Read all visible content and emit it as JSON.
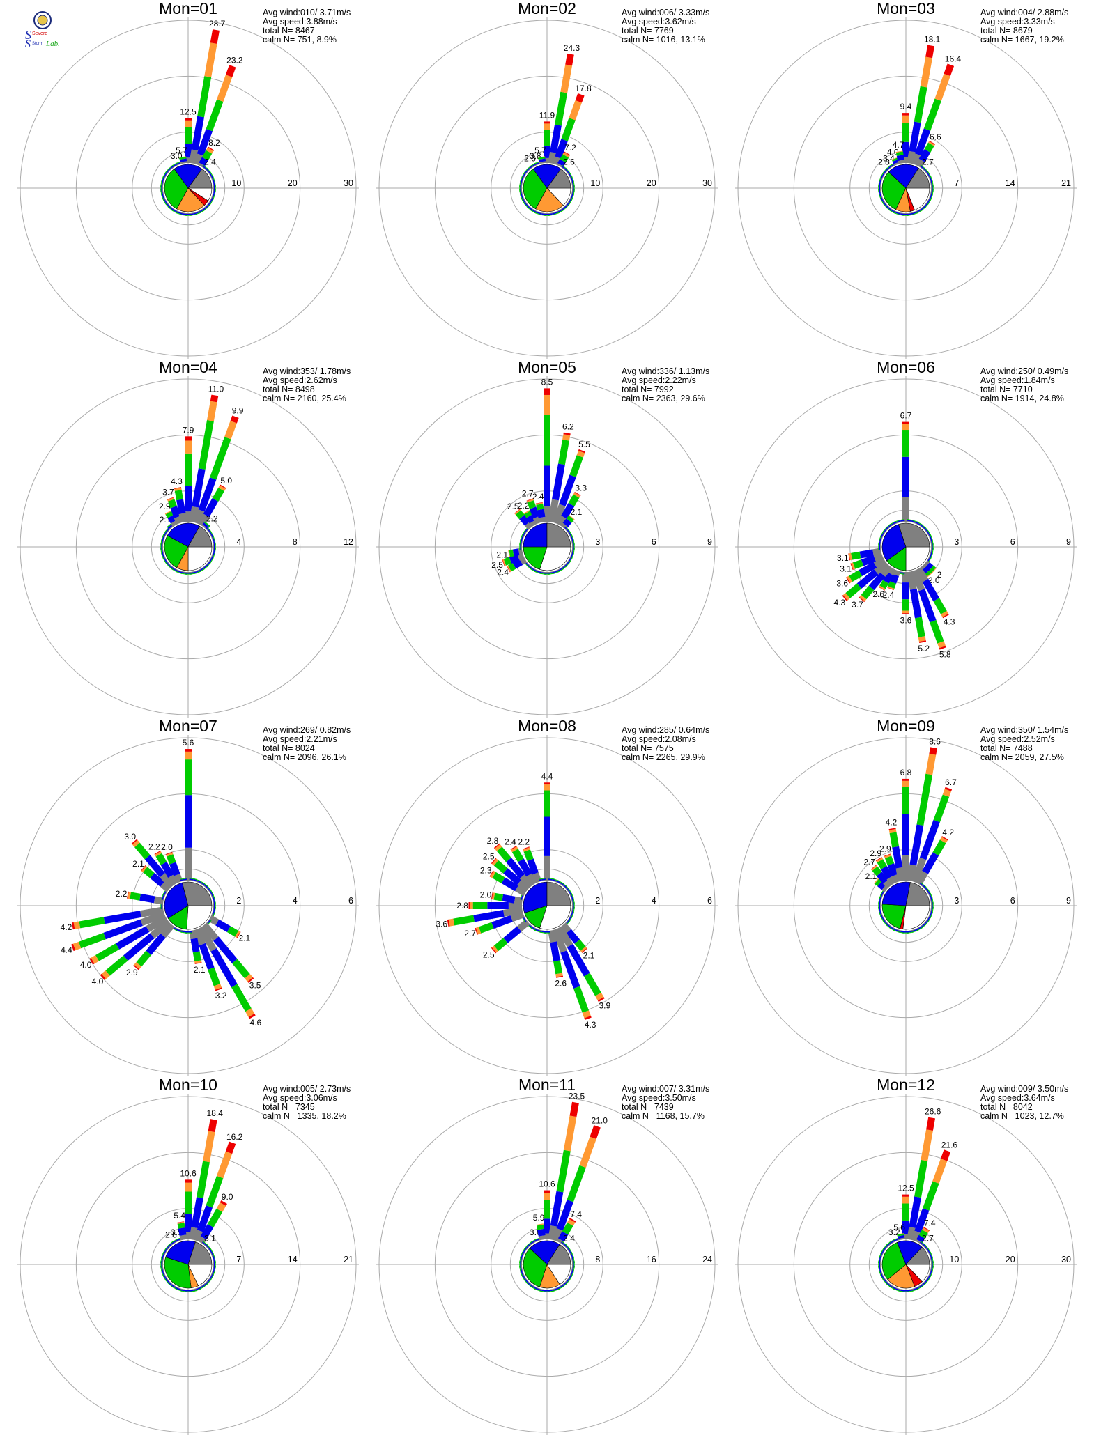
{
  "logo": {
    "letters_top": "Severe",
    "letters_mid": "Storm",
    "letters_right": "Lab."
  },
  "colors": {
    "calm": "#ffffff",
    "grey": "#808080",
    "blue": "#0000ee",
    "green": "#00cc00",
    "orange": "#ff9933",
    "red": "#ee0000",
    "grid": "#aaaaaa"
  },
  "stat_labels": [
    "Avg wind:",
    "Avg speed:",
    "total N=",
    "calm N="
  ],
  "chart_data": [
    {
      "type": "windrose",
      "title": "Mon=01",
      "rings": [
        10,
        20,
        30
      ],
      "rmax": 30,
      "avg_wind": "010/ 3.71m/s",
      "avg_speed": "3.88m/s",
      "total_n": "8467",
      "calm_n": "751,   8.9%",
      "labeled_bars": [
        {
          "dir": 0,
          "v": 12.5,
          "label": "12.5"
        },
        {
          "dir": 10,
          "v": 28.7,
          "label": "28.7"
        },
        {
          "dir": 20,
          "v": 23.2,
          "label": "23.2"
        },
        {
          "dir": 30,
          "v": 8.2,
          "label": "8.2"
        },
        {
          "dir": -10,
          "v": 5.7,
          "label": "5.7"
        },
        {
          "dir": -20,
          "v": 3.0,
          "label": "3.0"
        },
        {
          "dir": 40,
          "v": 2.4,
          "label": "2.4"
        }
      ],
      "pie": [
        {
          "c": "calm",
          "f": 0.09
        },
        {
          "c": "red",
          "f": 0.04
        },
        {
          "c": "orange",
          "f": 0.2
        },
        {
          "c": "green",
          "f": 0.32
        },
        {
          "c": "blue",
          "f": 0.2
        },
        {
          "c": "grey",
          "f": 0.15
        }
      ]
    },
    {
      "type": "windrose",
      "title": "Mon=02",
      "rings": [
        10,
        20,
        30
      ],
      "rmax": 30,
      "avg_wind": "006/ 3.33m/s",
      "avg_speed": "3.62m/s",
      "total_n": "7769",
      "calm_n": "1016,  13.1%",
      "labeled_bars": [
        {
          "dir": 0,
          "v": 11.9,
          "label": "11.9"
        },
        {
          "dir": 10,
          "v": 24.3,
          "label": "24.3"
        },
        {
          "dir": 20,
          "v": 17.8,
          "label": "17.8"
        },
        {
          "dir": 30,
          "v": 7.2,
          "label": "7.2"
        },
        {
          "dir": -10,
          "v": 5.7,
          "label": "5.7"
        },
        {
          "dir": -20,
          "v": 3.8,
          "label": "3.8"
        },
        {
          "dir": -30,
          "v": 2.6,
          "label": "2.6"
        },
        {
          "dir": 40,
          "v": 2.6,
          "label": "2.6"
        }
      ],
      "pie": [
        {
          "c": "calm",
          "f": 0.13
        },
        {
          "c": "orange",
          "f": 0.2
        },
        {
          "c": "green",
          "f": 0.32
        },
        {
          "c": "blue",
          "f": 0.2
        },
        {
          "c": "grey",
          "f": 0.15
        }
      ]
    },
    {
      "type": "windrose",
      "title": "Mon=03",
      "rings": [
        7,
        14,
        21
      ],
      "rmax": 21,
      "avg_wind": "004/ 2.88m/s",
      "avg_speed": "3.33m/s",
      "total_n": "8679",
      "calm_n": "1667,  19.2%",
      "labeled_bars": [
        {
          "dir": 0,
          "v": 9.4,
          "label": "9.4"
        },
        {
          "dir": 10,
          "v": 18.1,
          "label": "18.1"
        },
        {
          "dir": 20,
          "v": 16.4,
          "label": "16.4"
        },
        {
          "dir": 30,
          "v": 6.6,
          "label": "6.6"
        },
        {
          "dir": 40,
          "v": 2.7,
          "label": "2.7"
        },
        {
          "dir": -10,
          "v": 4.7,
          "label": "4.7"
        },
        {
          "dir": -20,
          "v": 4.0,
          "label": "4.0"
        },
        {
          "dir": -30,
          "v": 3.4,
          "label": "3.4"
        },
        {
          "dir": -40,
          "v": 2.8,
          "label": "2.8"
        }
      ],
      "pie": [
        {
          "c": "calm",
          "f": 0.19
        },
        {
          "c": "red",
          "f": 0.03
        },
        {
          "c": "orange",
          "f": 0.1
        },
        {
          "c": "green",
          "f": 0.3
        },
        {
          "c": "blue",
          "f": 0.22
        },
        {
          "c": "grey",
          "f": 0.16
        }
      ]
    },
    {
      "type": "windrose",
      "title": "Mon=04",
      "rings": [
        4,
        8,
        12
      ],
      "rmax": 12,
      "avg_wind": "353/ 1.78m/s",
      "avg_speed": "2.62m/s",
      "total_n": "8498",
      "calm_n": "2160,  25.4%",
      "labeled_bars": [
        {
          "dir": 0,
          "v": 7.9,
          "label": "7.9"
        },
        {
          "dir": 10,
          "v": 11.0,
          "label": "11.0"
        },
        {
          "dir": 20,
          "v": 9.9,
          "label": "9.9"
        },
        {
          "dir": 30,
          "v": 5.0,
          "label": "5.0"
        },
        {
          "dir": 40,
          "v": 2.2,
          "label": "2.2"
        },
        {
          "dir": -10,
          "v": 4.3,
          "label": "4.3"
        },
        {
          "dir": -20,
          "v": 3.7,
          "label": "3.7"
        },
        {
          "dir": -30,
          "v": 2.9,
          "label": "2.9"
        },
        {
          "dir": -40,
          "v": 2.1,
          "label": "2.1"
        }
      ],
      "pie": [
        {
          "c": "calm",
          "f": 0.25
        },
        {
          "c": "orange",
          "f": 0.08
        },
        {
          "c": "green",
          "f": 0.25
        },
        {
          "c": "blue",
          "f": 0.25
        },
        {
          "c": "grey",
          "f": 0.17
        }
      ]
    },
    {
      "type": "windrose",
      "title": "Mon=05",
      "rings": [
        3,
        6,
        9
      ],
      "rmax": 9,
      "avg_wind": "336/ 1.13m/s",
      "avg_speed": "2.22m/s",
      "total_n": "7992",
      "calm_n": "2363,  29.6%",
      "labeled_bars": [
        {
          "dir": 0,
          "v": 8.5,
          "label": "8.5"
        },
        {
          "dir": 10,
          "v": 6.2,
          "label": "6.2"
        },
        {
          "dir": 20,
          "v": 5.5,
          "label": "5.5"
        },
        {
          "dir": 30,
          "v": 3.3,
          "label": "3.3"
        },
        {
          "dir": 40,
          "v": 2.1,
          "label": "2.1"
        },
        {
          "dir": -10,
          "v": 2.4,
          "label": "2.4"
        },
        {
          "dir": -20,
          "v": 2.7,
          "label": "2.7"
        },
        {
          "dir": -30,
          "v": 2.2,
          "label": "2.2"
        },
        {
          "dir": -40,
          "v": 2.5,
          "label": "2.5"
        },
        {
          "dir": -100,
          "v": 2.1,
          "label": "2.1"
        },
        {
          "dir": -110,
          "v": 2.5,
          "label": "2.5"
        },
        {
          "dir": -120,
          "v": 2.4,
          "label": "2.4"
        }
      ],
      "pie": [
        {
          "c": "calm",
          "f": 0.3
        },
        {
          "c": "green",
          "f": 0.2
        },
        {
          "c": "blue",
          "f": 0.25
        },
        {
          "c": "grey",
          "f": 0.25
        }
      ]
    },
    {
      "type": "windrose",
      "title": "Mon=06",
      "rings": [
        3,
        6,
        9
      ],
      "rmax": 9,
      "avg_wind": "250/ 0.49m/s",
      "avg_speed": "1.84m/s",
      "total_n": "7710",
      "calm_n": "1914,  24.8%",
      "labeled_bars": [
        {
          "dir": 0,
          "v": 6.7,
          "label": "6.7"
        },
        {
          "dir": -100,
          "v": 3.1,
          "label": "3.1"
        },
        {
          "dir": -110,
          "v": 3.1,
          "label": "3.1"
        },
        {
          "dir": -120,
          "v": 3.6,
          "label": "3.6"
        },
        {
          "dir": -130,
          "v": 4.3,
          "label": "4.3"
        },
        {
          "dir": -140,
          "v": 3.7,
          "label": "3.7"
        },
        {
          "dir": -150,
          "v": 2.6,
          "label": "2.6"
        },
        {
          "dir": -160,
          "v": 2.4,
          "label": "2.4"
        },
        {
          "dir": 180,
          "v": 3.6,
          "label": "3.6"
        },
        {
          "dir": 170,
          "v": 5.2,
          "label": "5.2"
        },
        {
          "dir": 160,
          "v": 5.8,
          "label": "5.8"
        },
        {
          "dir": 150,
          "v": 4.3,
          "label": "4.3"
        },
        {
          "dir": 140,
          "v": 2.0,
          "label": "2.0"
        },
        {
          "dir": 130,
          "v": 2.0,
          "label": "2"
        }
      ],
      "pie": [
        {
          "c": "calm",
          "f": 0.25
        },
        {
          "c": "green",
          "f": 0.15
        },
        {
          "c": "blue",
          "f": 0.3
        },
        {
          "c": "grey",
          "f": 0.3
        }
      ]
    },
    {
      "type": "windrose",
      "title": "Mon=07",
      "rings": [
        2,
        4,
        6
      ],
      "rmax": 6,
      "avg_wind": "269/ 0.82m/s",
      "avg_speed": "2.21m/s",
      "total_n": "8024",
      "calm_n": "2096,  26.1%",
      "labeled_bars": [
        {
          "dir": 0,
          "v": 5.6,
          "label": "5.6"
        },
        {
          "dir": -20,
          "v": 2.0,
          "label": "2.0"
        },
        {
          "dir": -30,
          "v": 2.2,
          "label": "2.2"
        },
        {
          "dir": -40,
          "v": 3.0,
          "label": "3.0"
        },
        {
          "dir": -50,
          "v": 2.1,
          "label": "2.1"
        },
        {
          "dir": -80,
          "v": 2.2,
          "label": "2.2"
        },
        {
          "dir": -100,
          "v": 4.2,
          "label": "4.2"
        },
        {
          "dir": -110,
          "v": 4.4,
          "label": "4.4"
        },
        {
          "dir": -120,
          "v": 4.0,
          "label": "4.0"
        },
        {
          "dir": -130,
          "v": 4.0,
          "label": "4.0"
        },
        {
          "dir": -140,
          "v": 2.9,
          "label": "2.9"
        },
        {
          "dir": 170,
          "v": 2.1,
          "label": "2.1"
        },
        {
          "dir": 160,
          "v": 3.2,
          "label": "3.2"
        },
        {
          "dir": 150,
          "v": 4.6,
          "label": "4.6"
        },
        {
          "dir": 140,
          "v": 3.5,
          "label": "3.5"
        },
        {
          "dir": 120,
          "v": 2.1,
          "label": "2.1"
        }
      ],
      "pie": [
        {
          "c": "calm",
          "f": 0.26
        },
        {
          "c": "green",
          "f": 0.15
        },
        {
          "c": "blue",
          "f": 0.3
        },
        {
          "c": "grey",
          "f": 0.29
        }
      ]
    },
    {
      "type": "windrose",
      "title": "Mon=08",
      "rings": [
        2,
        4,
        6
      ],
      "rmax": 6,
      "avg_wind": "285/ 0.64m/s",
      "avg_speed": "2.08m/s",
      "total_n": "7575",
      "calm_n": "2265,  29.9%",
      "labeled_bars": [
        {
          "dir": 0,
          "v": 4.4,
          "label": "4.4"
        },
        {
          "dir": -20,
          "v": 2.2,
          "label": "2.2"
        },
        {
          "dir": -30,
          "v": 2.4,
          "label": "2.4"
        },
        {
          "dir": -40,
          "v": 2.8,
          "label": "2.8"
        },
        {
          "dir": -50,
          "v": 2.5,
          "label": "2.5"
        },
        {
          "dir": -60,
          "v": 2.3,
          "label": "2.3"
        },
        {
          "dir": -80,
          "v": 2.0,
          "label": "2.0"
        },
        {
          "dir": -90,
          "v": 2.8,
          "label": "2.8"
        },
        {
          "dir": -100,
          "v": 3.6,
          "label": "3.6"
        },
        {
          "dir": -110,
          "v": 2.7,
          "label": "2.7"
        },
        {
          "dir": -130,
          "v": 2.5,
          "label": "2.5"
        },
        {
          "dir": 170,
          "v": 2.6,
          "label": "2.6"
        },
        {
          "dir": 160,
          "v": 4.3,
          "label": "4.3"
        },
        {
          "dir": 150,
          "v": 3.9,
          "label": "3.9"
        },
        {
          "dir": 140,
          "v": 2.1,
          "label": "2.1"
        }
      ],
      "pie": [
        {
          "c": "calm",
          "f": 0.3
        },
        {
          "c": "green",
          "f": 0.15
        },
        {
          "c": "blue",
          "f": 0.3
        },
        {
          "c": "grey",
          "f": 0.25
        }
      ]
    },
    {
      "type": "windrose",
      "title": "Mon=09",
      "rings": [
        3,
        6,
        9
      ],
      "rmax": 9,
      "avg_wind": "350/ 1.54m/s",
      "avg_speed": "2.52m/s",
      "total_n": "7488",
      "calm_n": "2059,  27.5%",
      "labeled_bars": [
        {
          "dir": 0,
          "v": 6.8,
          "label": "6.8"
        },
        {
          "dir": 10,
          "v": 8.6,
          "label": "8.6"
        },
        {
          "dir": 20,
          "v": 6.7,
          "label": "6.7"
        },
        {
          "dir": 30,
          "v": 4.2,
          "label": "4.2"
        },
        {
          "dir": -10,
          "v": 4.2,
          "label": "4.2"
        },
        {
          "dir": -20,
          "v": 2.9,
          "label": "2.9"
        },
        {
          "dir": -30,
          "v": 2.9,
          "label": "2.9"
        },
        {
          "dir": -40,
          "v": 2.7,
          "label": "2.7"
        },
        {
          "dir": -50,
          "v": 2.1,
          "label": "2.1"
        }
      ],
      "pie": [
        {
          "c": "calm",
          "f": 0.27
        },
        {
          "c": "red",
          "f": 0.02
        },
        {
          "c": "green",
          "f": 0.22
        },
        {
          "c": "blue",
          "f": 0.27
        },
        {
          "c": "grey",
          "f": 0.22
        }
      ]
    },
    {
      "type": "windrose",
      "title": "Mon=10",
      "rings": [
        7,
        14,
        21
      ],
      "rmax": 21,
      "avg_wind": "005/ 2.73m/s",
      "avg_speed": "3.06m/s",
      "total_n": "7345",
      "calm_n": "1335,  18.2%",
      "labeled_bars": [
        {
          "dir": 0,
          "v": 10.6,
          "label": "10.6"
        },
        {
          "dir": 10,
          "v": 18.4,
          "label": "18.4"
        },
        {
          "dir": 20,
          "v": 16.2,
          "label": "16.2"
        },
        {
          "dir": 30,
          "v": 9.0,
          "label": "9.0"
        },
        {
          "dir": 40,
          "v": 3.1,
          "label": "3.1"
        },
        {
          "dir": -10,
          "v": 5.4,
          "label": "5.4"
        },
        {
          "dir": -20,
          "v": 3.5,
          "label": "3.5"
        },
        {
          "dir": -30,
          "v": 2.8,
          "label": "2.8"
        }
      ],
      "pie": [
        {
          "c": "calm",
          "f": 0.18
        },
        {
          "c": "orange",
          "f": 0.05
        },
        {
          "c": "green",
          "f": 0.32
        },
        {
          "c": "blue",
          "f": 0.25
        },
        {
          "c": "grey",
          "f": 0.2
        }
      ]
    },
    {
      "type": "windrose",
      "title": "Mon=11",
      "rings": [
        8,
        16,
        24
      ],
      "rmax": 24,
      "avg_wind": "007/ 3.31m/s",
      "avg_speed": "3.50m/s",
      "total_n": "7439",
      "calm_n": "1168,  15.7%",
      "labeled_bars": [
        {
          "dir": 0,
          "v": 10.6,
          "label": "10.6"
        },
        {
          "dir": 10,
          "v": 23.5,
          "label": "23.5"
        },
        {
          "dir": 20,
          "v": 21.0,
          "label": "21.0"
        },
        {
          "dir": 30,
          "v": 7.4,
          "label": "7.4"
        },
        {
          "dir": 40,
          "v": 2.4,
          "label": "2.4"
        },
        {
          "dir": -10,
          "v": 5.9,
          "label": "5.9"
        },
        {
          "dir": -20,
          "v": 3.6,
          "label": "3.6"
        }
      ],
      "pie": [
        {
          "c": "calm",
          "f": 0.16
        },
        {
          "c": "orange",
          "f": 0.14
        },
        {
          "c": "green",
          "f": 0.32
        },
        {
          "c": "blue",
          "f": 0.22
        },
        {
          "c": "grey",
          "f": 0.16
        }
      ]
    },
    {
      "type": "windrose",
      "title": "Mon=12",
      "rings": [
        10,
        20,
        30
      ],
      "rmax": 30,
      "avg_wind": "009/ 3.50m/s",
      "avg_speed": "3.64m/s",
      "total_n": "8042",
      "calm_n": "1023,  12.7%",
      "labeled_bars": [
        {
          "dir": 0,
          "v": 12.5,
          "label": "12.5"
        },
        {
          "dir": 10,
          "v": 26.6,
          "label": "26.6"
        },
        {
          "dir": 20,
          "v": 21.6,
          "label": "21.6"
        },
        {
          "dir": 30,
          "v": 7.4,
          "label": "7.4"
        },
        {
          "dir": 40,
          "v": 2.7,
          "label": "2.7"
        },
        {
          "dir": -10,
          "v": 5.6,
          "label": "5.6"
        },
        {
          "dir": -20,
          "v": 3.2,
          "label": "3.2"
        }
      ],
      "pie": [
        {
          "c": "calm",
          "f": 0.13
        },
        {
          "c": "red",
          "f": 0.06
        },
        {
          "c": "orange",
          "f": 0.2
        },
        {
          "c": "green",
          "f": 0.3
        },
        {
          "c": "blue",
          "f": 0.18
        },
        {
          "c": "grey",
          "f": 0.13
        }
      ]
    }
  ]
}
